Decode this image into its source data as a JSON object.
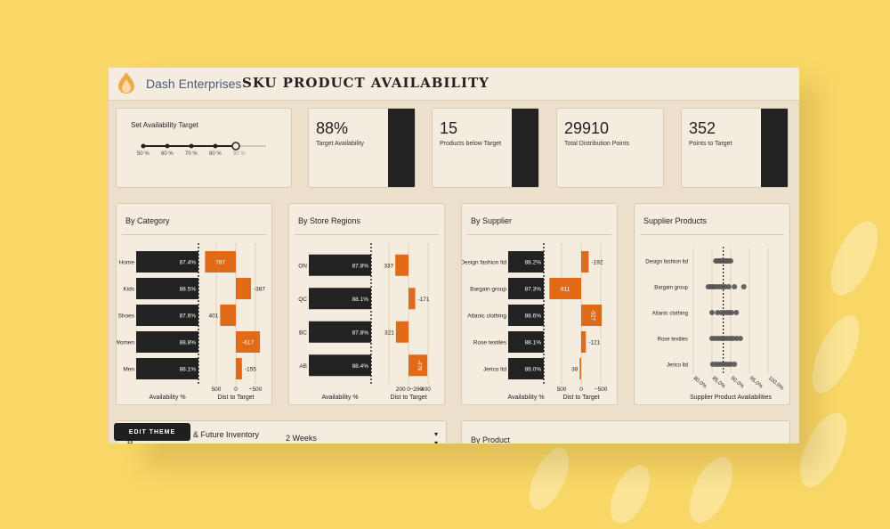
{
  "app": {
    "brand": "Dash Enterprises",
    "title": "SKU PRODUCT AVAILABILITY",
    "theme_button": "EDIT THEME"
  },
  "colors": {
    "bar_dark": "#222222",
    "bar_orange": "#e06a17",
    "panel": "#f5ece0"
  },
  "slider": {
    "label": "Set Availability Target",
    "ticks": [
      "50 %",
      "60 %",
      "70 %",
      "80 %",
      "90 %"
    ],
    "value": "88%"
  },
  "kpis": [
    {
      "value": "88%",
      "label": "Target Availability"
    },
    {
      "value": "15",
      "label": "Products below Target"
    },
    {
      "value": "29910",
      "label": "Total Distribution Points"
    },
    {
      "value": "352",
      "label": "Points to Target"
    }
  ],
  "panels": [
    {
      "title": "By Category",
      "rows": [
        {
          "name": "Home",
          "avail": "87.4%",
          "dist": "787",
          "d": 787
        },
        {
          "name": "Kids",
          "avail": "88.5%",
          "dist": "-387",
          "d": -387
        },
        {
          "name": "Shoes",
          "avail": "87.6%",
          "dist": "401",
          "d": 401
        },
        {
          "name": "Women",
          "avail": "88.8%",
          "dist": "-617",
          "d": -617
        },
        {
          "name": "Men",
          "avail": "88.1%",
          "dist": "-155",
          "d": -155
        }
      ],
      "dist_ticks": [
        "500",
        "0",
        "−500"
      ],
      "xlabel_left": "Availability %",
      "xlabel_right": "Dist to Target"
    },
    {
      "title": "By Store Regions",
      "rows": [
        {
          "name": "ON",
          "avail": "87.8%",
          "dist": "337",
          "d": 337
        },
        {
          "name": "QC",
          "avail": "88.1%",
          "dist": "-171",
          "d": -171
        },
        {
          "name": "BC",
          "avail": "87.8%",
          "dist": "321",
          "d": 321
        },
        {
          "name": "AB",
          "avail": "88.4%",
          "dist": "-479",
          "d": -479
        }
      ],
      "dist_ticks": [
        "200",
        "0",
        "−200",
        "−400"
      ],
      "xlabel_left": "Availability %",
      "xlabel_right": "Dist to Target"
    },
    {
      "title": "By Supplier",
      "rows": [
        {
          "name": "Design fashion ltd",
          "avail": "88.2%",
          "dist": "-192",
          "d": -192
        },
        {
          "name": "Bargain group",
          "avail": "87.3%",
          "dist": "811",
          "d": 811
        },
        {
          "name": "Atlanic clothing",
          "avail": "88.6%",
          "dist": "-527",
          "d": -527
        },
        {
          "name": "Rose textiles",
          "avail": "88.1%",
          "dist": "-121",
          "d": -121
        },
        {
          "name": "Jerico ltd",
          "avail": "88.0%",
          "dist": "38",
          "d": 38
        }
      ],
      "dist_ticks": [
        "500",
        "0",
        "−500"
      ],
      "xlabel_left": "Availability %",
      "xlabel_right": "Dist to Target"
    }
  ],
  "supplier_products": {
    "title": "Supplier Products",
    "rows": [
      {
        "name": "Design fashion ltd",
        "points": [
          86.0,
          86.5,
          87.0,
          87.4,
          87.8,
          88.2,
          88.6,
          89.0,
          89.5,
          90.0
        ]
      },
      {
        "name": "Bargain group",
        "points": [
          84.0,
          84.6,
          85.2,
          85.8,
          86.5,
          87.2,
          87.9,
          88.5,
          89.5,
          91.0,
          93.5
        ]
      },
      {
        "name": "Atlanic clothing",
        "points": [
          85.0,
          86.5,
          87.5,
          88.2,
          89.0,
          89.6,
          90.2,
          91.5
        ]
      },
      {
        "name": "Rose textiles",
        "points": [
          85.0,
          85.8,
          86.6,
          87.4,
          88.2,
          89.0,
          89.8,
          90.6,
          91.6,
          92.6
        ]
      },
      {
        "name": "Jerico ltd",
        "points": [
          85.2,
          86.0,
          86.8,
          87.6,
          88.4,
          89.2,
          90.0,
          91.0
        ]
      }
    ],
    "ticks": [
      "80.0%",
      "85.0%",
      "90.0%",
      "95.0%",
      "100.0%"
    ],
    "xlabel": "Supplier Product Availabilities"
  },
  "bottom": {
    "left_title": "& Future Inventory",
    "left_cut": "R",
    "dropdown": "2 Weeks",
    "right_title": "By Product"
  }
}
